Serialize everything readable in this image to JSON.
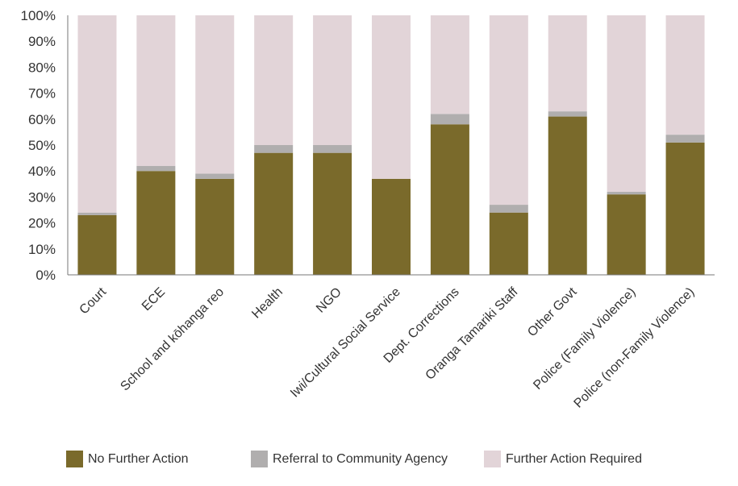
{
  "chart_data": {
    "type": "bar",
    "stacked": true,
    "orientation": "vertical",
    "categories": [
      "Court",
      "ECE",
      "School and kōhanga reo",
      "Health",
      "NGO",
      "Iwi/Cultural Social Service",
      "Dept. Corrections",
      "Oranga Tamariki Staff",
      "Other Govt",
      "Police (Family Violence)",
      "Police (non-Family Violence)"
    ],
    "series": [
      {
        "name": "No Further Action",
        "color": "#7a6a2b",
        "values": [
          23,
          40,
          37,
          47,
          47,
          37,
          58,
          24,
          61,
          31,
          51
        ]
      },
      {
        "name": "Referral to Community Agency",
        "color": "#b0aeae",
        "values": [
          1,
          2,
          2,
          3,
          3,
          0,
          4,
          3,
          2,
          1,
          3
        ]
      },
      {
        "name": "Further Action Required",
        "color": "#e2d4d8",
        "values": [
          76,
          58,
          61,
          50,
          50,
          63,
          38,
          73,
          37,
          68,
          46
        ]
      }
    ],
    "yticks": [
      "0%",
      "10%",
      "20%",
      "30%",
      "40%",
      "50%",
      "60%",
      "70%",
      "80%",
      "90%",
      "100%"
    ],
    "ylim": [
      0,
      100
    ],
    "grid": false,
    "legend_position": "bottom"
  }
}
